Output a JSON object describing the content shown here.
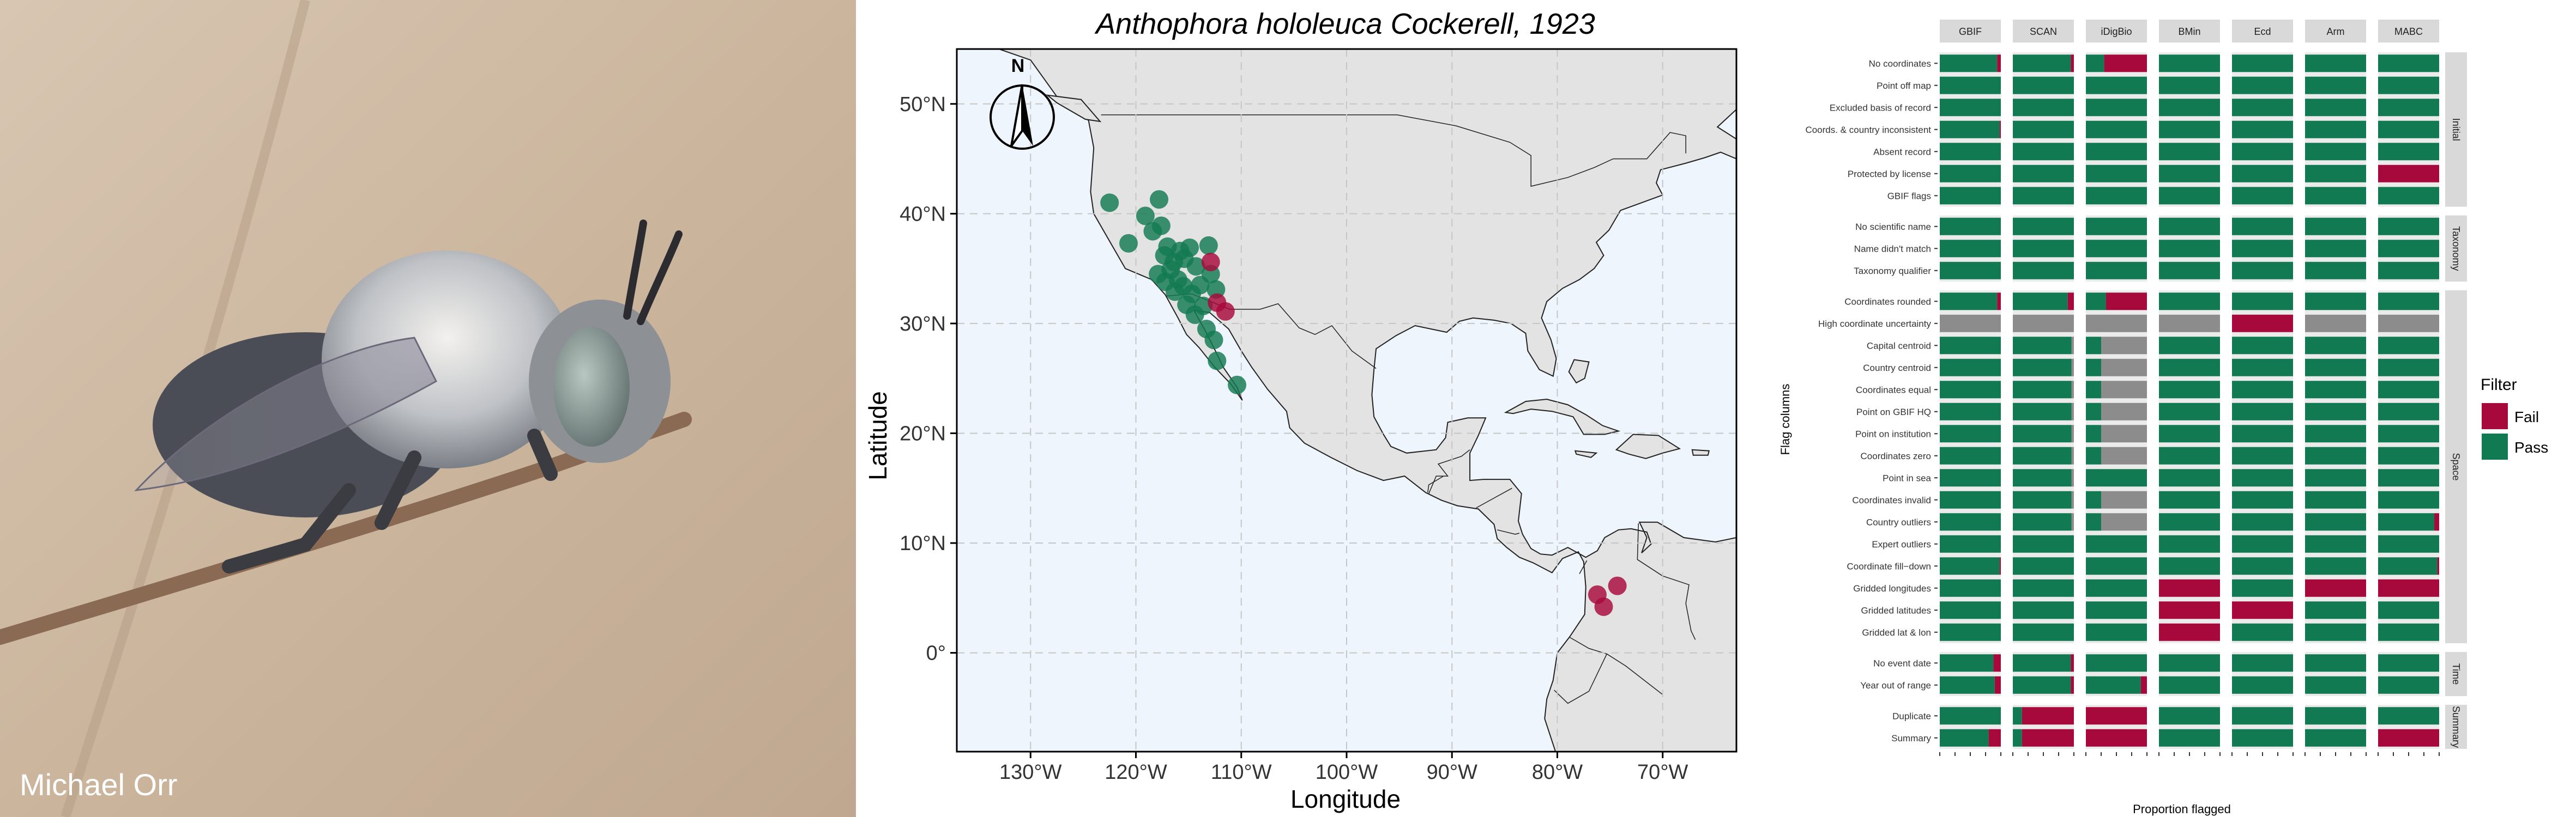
{
  "photo": {
    "credit": "Michael Orr"
  },
  "map": {
    "title": "Anthophora hololeuca Cockerell, 1923",
    "xlabel": "Longitude",
    "ylabel": "Latitude",
    "north_label": "N",
    "x_ticks": [
      "130°W",
      "120°W",
      "110°W",
      "100°W",
      "90°W",
      "80°W",
      "70°W"
    ],
    "y_ticks": [
      "50°N",
      "40°N",
      "30°N",
      "20°N",
      "10°N",
      "0°"
    ]
  },
  "chart_data": [
    {
      "type": "scatter",
      "title": "Anthophora hololeuca Cockerell, 1923",
      "xlabel": "Longitude",
      "ylabel": "Latitude",
      "xlim": [
        -137,
        -63
      ],
      "ylim": [
        -9,
        55
      ],
      "x_ticks": [
        -130,
        -120,
        -110,
        -100,
        -90,
        -80,
        -70
      ],
      "y_ticks": [
        50,
        40,
        30,
        20,
        10,
        0
      ],
      "grid": true,
      "colors": {
        "pass": "#127a52",
        "fail": "#a8093c",
        "ocean": "#eef5fc",
        "land": "#e3e3e3"
      },
      "points": [
        {
          "lon": -122.5,
          "lat": 41,
          "s": "pass"
        },
        {
          "lon": -120.7,
          "lat": 37.3,
          "s": "pass"
        },
        {
          "lon": -119.1,
          "lat": 39.8,
          "s": "pass"
        },
        {
          "lon": -117.8,
          "lat": 41.3,
          "s": "pass"
        },
        {
          "lon": -118.4,
          "lat": 38.4,
          "s": "pass"
        },
        {
          "lon": -117.6,
          "lat": 38.9,
          "s": "pass"
        },
        {
          "lon": -117,
          "lat": 37,
          "s": "pass"
        },
        {
          "lon": -116.4,
          "lat": 35.6,
          "s": "pass"
        },
        {
          "lon": -117.9,
          "lat": 34.5,
          "s": "pass"
        },
        {
          "lon": -117.2,
          "lat": 33.8,
          "s": "pass"
        },
        {
          "lon": -116.7,
          "lat": 34.9,
          "s": "pass"
        },
        {
          "lon": -116,
          "lat": 34,
          "s": "pass"
        },
        {
          "lon": -115.4,
          "lat": 35.9,
          "s": "pass"
        },
        {
          "lon": -114.9,
          "lat": 36.9,
          "s": "pass"
        },
        {
          "lon": -114.3,
          "lat": 35.2,
          "s": "pass"
        },
        {
          "lon": -116.3,
          "lat": 32.9,
          "s": "pass"
        },
        {
          "lon": -115.5,
          "lat": 33.4,
          "s": "pass"
        },
        {
          "lon": -114.7,
          "lat": 32.7,
          "s": "pass"
        },
        {
          "lon": -113.9,
          "lat": 33.5,
          "s": "pass"
        },
        {
          "lon": -113.1,
          "lat": 37.1,
          "s": "pass"
        },
        {
          "lon": -112.9,
          "lat": 34.5,
          "s": "pass"
        },
        {
          "lon": -112.4,
          "lat": 33.1,
          "s": "pass"
        },
        {
          "lon": -115.2,
          "lat": 31.7,
          "s": "pass"
        },
        {
          "lon": -114.4,
          "lat": 30.8,
          "s": "pass"
        },
        {
          "lon": -113.6,
          "lat": 31.6,
          "s": "pass"
        },
        {
          "lon": -113.3,
          "lat": 29.5,
          "s": "pass"
        },
        {
          "lon": -112.6,
          "lat": 28.5,
          "s": "pass"
        },
        {
          "lon": -112.3,
          "lat": 26.6,
          "s": "pass"
        },
        {
          "lon": -115.8,
          "lat": 36.6,
          "s": "pass"
        },
        {
          "lon": -117.3,
          "lat": 36.2,
          "s": "pass"
        },
        {
          "lon": -110.4,
          "lat": 24.4,
          "s": "pass"
        },
        {
          "lon": -112.9,
          "lat": 35.6,
          "s": "fail"
        },
        {
          "lon": -111.5,
          "lat": 31.1,
          "s": "fail"
        },
        {
          "lon": -112.3,
          "lat": 31.9,
          "s": "fail"
        },
        {
          "lon": -76.2,
          "lat": 5.3,
          "s": "fail"
        },
        {
          "lon": -74.3,
          "lat": 6.1,
          "s": "fail"
        },
        {
          "lon": -75.6,
          "lat": 4.2,
          "s": "fail"
        }
      ]
    },
    {
      "type": "stacked-bar-facets",
      "xlabel": "Proportion flagged",
      "ylabel": "Flag columns",
      "columns": [
        "GBIF",
        "SCAN",
        "iDigBio",
        "BMin",
        "Ecd",
        "Arm",
        "MABC"
      ],
      "legend": {
        "title": "Filter",
        "items": [
          {
            "label": "Fail",
            "color": "#a8093c"
          },
          {
            "label": "Pass",
            "color": "#127a52"
          }
        ],
        "position": "right"
      },
      "colors": {
        "pass": "#127a52",
        "fail": "#a8093c",
        "na": "#8c8c8c"
      },
      "groups": [
        {
          "name": "Initial",
          "rows": [
            {
              "label": "No coordinates",
              "fail": [
                0.06,
                0.05,
                0.7,
                0,
                0,
                0,
                0
              ],
              "na": [
                0,
                0,
                0,
                0,
                0,
                0,
                0
              ]
            },
            {
              "label": "Point off map",
              "fail": [
                0,
                0,
                0,
                0,
                0,
                0,
                0
              ],
              "na": [
                0,
                0,
                0,
                0,
                0,
                0,
                0
              ]
            },
            {
              "label": "Excluded basis of record",
              "fail": [
                0,
                0,
                0,
                0,
                0,
                0,
                0
              ],
              "na": [
                0,
                0,
                0,
                0,
                0,
                0,
                0
              ]
            },
            {
              "label": "Coords. & country inconsistent",
              "fail": [
                0.02,
                0,
                0,
                0,
                0,
                0,
                0
              ],
              "na": [
                0,
                0,
                0,
                0,
                0,
                0,
                0
              ]
            },
            {
              "label": "Absent record",
              "fail": [
                0,
                0,
                0,
                0,
                0,
                0,
                0
              ],
              "na": [
                0,
                0,
                0,
                0,
                0,
                0,
                0
              ]
            },
            {
              "label": "Protected by license",
              "fail": [
                0,
                0,
                0,
                0,
                0,
                0,
                1
              ],
              "na": [
                0,
                0,
                0,
                0,
                0,
                0,
                0
              ]
            },
            {
              "label": "GBIF flags",
              "fail": [
                0,
                0,
                0,
                0,
                0,
                0,
                0
              ],
              "na": [
                0,
                0,
                0,
                0,
                0,
                0,
                0
              ]
            }
          ]
        },
        {
          "name": "Taxonomy",
          "rows": [
            {
              "label": "No scientific name",
              "fail": [
                0,
                0,
                0,
                0,
                0,
                0,
                0
              ],
              "na": [
                0,
                0,
                0,
                0,
                0,
                0,
                0
              ]
            },
            {
              "label": "Name didn't match",
              "fail": [
                0,
                0,
                0,
                0,
                0,
                0,
                0
              ],
              "na": [
                0,
                0,
                0,
                0,
                0,
                0,
                0
              ]
            },
            {
              "label": "Taxonomy qualifier",
              "fail": [
                0,
                0,
                0,
                0,
                0,
                0,
                0
              ],
              "na": [
                0,
                0,
                0,
                0,
                0,
                0,
                0
              ]
            }
          ]
        },
        {
          "name": "Space",
          "rows": [
            {
              "label": "Coordinates rounded",
              "fail": [
                0.06,
                0.1,
                0.67,
                0,
                0,
                0,
                0
              ],
              "na": [
                0,
                0,
                0,
                0,
                0,
                0,
                0
              ]
            },
            {
              "label": "High coordinate uncertainty",
              "fail": [
                0,
                0,
                0,
                0,
                1,
                0,
                0
              ],
              "na": [
                1,
                1,
                1,
                1,
                0,
                1,
                1
              ]
            },
            {
              "label": "Capital centroid",
              "fail": [
                0,
                0,
                0,
                0,
                0,
                0,
                0
              ],
              "na": [
                0,
                0.04,
                0.75,
                0,
                0,
                0,
                0
              ]
            },
            {
              "label": "Country centroid",
              "fail": [
                0,
                0,
                0,
                0,
                0,
                0,
                0
              ],
              "na": [
                0,
                0.04,
                0.75,
                0,
                0,
                0,
                0
              ]
            },
            {
              "label": "Coordinates equal",
              "fail": [
                0,
                0,
                0,
                0,
                0,
                0,
                0
              ],
              "na": [
                0,
                0.04,
                0.75,
                0,
                0,
                0,
                0
              ]
            },
            {
              "label": "Point on GBIF HQ",
              "fail": [
                0,
                0,
                0,
                0,
                0,
                0,
                0
              ],
              "na": [
                0,
                0.04,
                0.75,
                0,
                0,
                0,
                0
              ]
            },
            {
              "label": "Point on institution",
              "fail": [
                0,
                0,
                0,
                0,
                0,
                0,
                0
              ],
              "na": [
                0,
                0.04,
                0.75,
                0,
                0,
                0,
                0
              ]
            },
            {
              "label": "Coordinates zero",
              "fail": [
                0,
                0,
                0,
                0,
                0,
                0,
                0
              ],
              "na": [
                0,
                0.04,
                0.75,
                0,
                0,
                0,
                0
              ]
            },
            {
              "label": "Point in sea",
              "fail": [
                0,
                0,
                0,
                0,
                0,
                0,
                0
              ],
              "na": [
                0,
                0.04,
                0,
                0,
                0,
                0,
                0
              ]
            },
            {
              "label": "Coordinates invalid",
              "fail": [
                0,
                0,
                0,
                0,
                0,
                0,
                0
              ],
              "na": [
                0,
                0.04,
                0.75,
                0,
                0,
                0,
                0
              ]
            },
            {
              "label": "Country outliers",
              "fail": [
                0,
                0,
                0,
                0,
                0,
                0,
                0.08
              ],
              "na": [
                0,
                0.04,
                0.75,
                0,
                0,
                0,
                0
              ]
            },
            {
              "label": "Expert outliers",
              "fail": [
                0,
                0,
                0,
                0,
                0,
                0,
                0
              ],
              "na": [
                0,
                0,
                0,
                0,
                0,
                0,
                0
              ]
            },
            {
              "label": "Coordinate fill−down",
              "fail": [
                0.02,
                0,
                0,
                0,
                0,
                0,
                0.03
              ],
              "na": [
                0,
                0,
                0,
                0,
                0,
                0,
                0
              ]
            },
            {
              "label": "Gridded longitudes",
              "fail": [
                0,
                0,
                0,
                1,
                0,
                1,
                1
              ],
              "na": [
                0,
                0,
                0,
                0,
                0,
                0,
                0
              ]
            },
            {
              "label": "Gridded latitudes",
              "fail": [
                0,
                0,
                0,
                1,
                1,
                0,
                0
              ],
              "na": [
                0,
                0,
                0,
                0,
                0,
                0,
                0
              ]
            },
            {
              "label": "Gridded lat & lon",
              "fail": [
                0,
                0,
                0,
                1,
                0,
                0,
                0
              ],
              "na": [
                0,
                0,
                0,
                0,
                0,
                0,
                0
              ]
            }
          ]
        },
        {
          "name": "Time",
          "rows": [
            {
              "label": "No event date",
              "fail": [
                0.12,
                0.05,
                0,
                0,
                0,
                0,
                0
              ],
              "na": [
                0,
                0,
                0,
                0,
                0,
                0,
                0
              ]
            },
            {
              "label": "Year out of range",
              "fail": [
                0.1,
                0.05,
                0.1,
                0,
                0,
                0,
                0
              ],
              "na": [
                0,
                0,
                0,
                0,
                0,
                0,
                0
              ]
            }
          ]
        },
        {
          "name": "Summary",
          "rows": [
            {
              "label": "Duplicate",
              "fail": [
                0,
                0.85,
                1,
                0,
                0,
                0,
                0
              ],
              "na": [
                0,
                0,
                0,
                0,
                0,
                0,
                0
              ]
            },
            {
              "label": "Summary",
              "fail": [
                0.2,
                0.85,
                1,
                0,
                0,
                0,
                1
              ],
              "na": [
                0,
                0,
                0,
                0,
                0,
                0,
                0
              ]
            }
          ]
        }
      ]
    }
  ]
}
